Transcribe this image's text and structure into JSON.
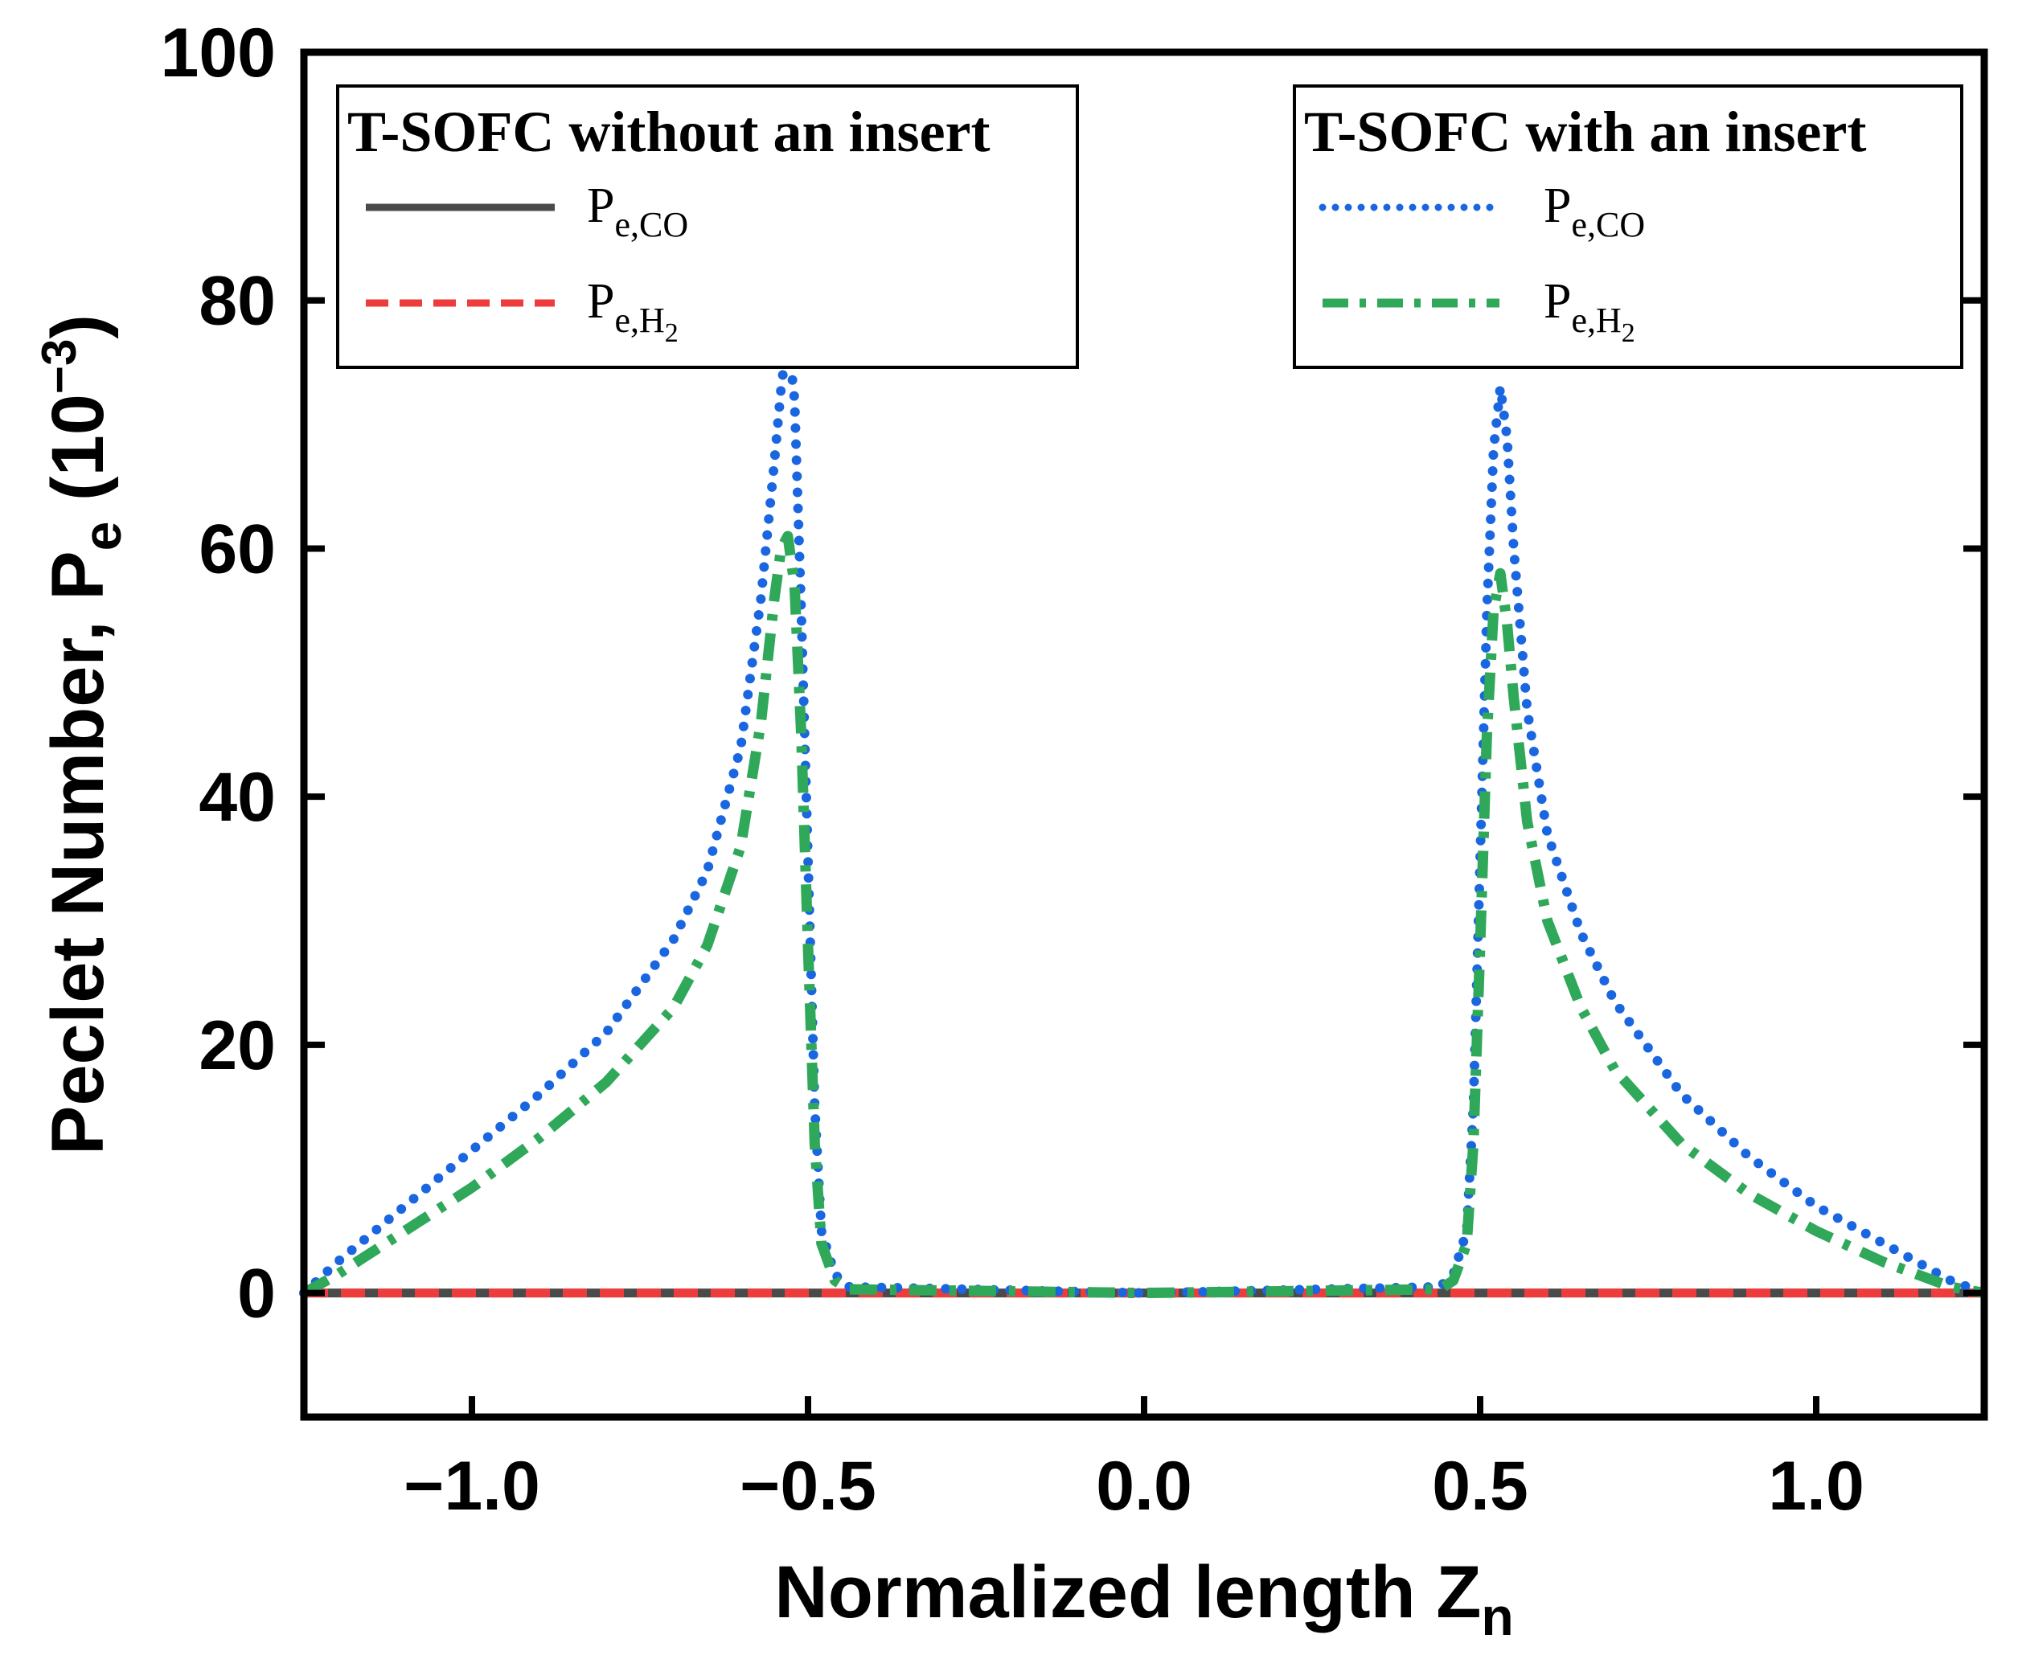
{
  "chart_data": {
    "type": "line",
    "xlabel": "Normalized length Z",
    "xlabel_sub": "n",
    "ylabel": "Peclet Number, P",
    "ylabel_sub": "e",
    "ylabel_unit": "(10",
    "ylabel_unit_exp": "−3",
    "ylabel_unit_close": ")",
    "xlim": [
      -1.25,
      1.25
    ],
    "ylim": [
      -10,
      100
    ],
    "xticks": [
      -1.0,
      -0.5,
      0.0,
      0.5,
      1.0
    ],
    "xtick_labels": [
      "−1.0",
      "−0.5",
      "0.0",
      "0.5",
      "1.0"
    ],
    "yticks": [
      0,
      20,
      40,
      60,
      80,
      100
    ],
    "ytick_labels": [
      "0",
      "20",
      "40",
      "60",
      "80",
      "100"
    ],
    "legends": [
      {
        "title": "T-SOFC without an insert",
        "position": "top-left",
        "entries": [
          {
            "series": 0,
            "label": "P",
            "sub": "e,CO",
            "sub2": ""
          },
          {
            "series": 1,
            "label": "P",
            "sub": "e,H",
            "sub2": "2"
          }
        ]
      },
      {
        "title": "T-SOFC with an insert",
        "position": "top-right",
        "entries": [
          {
            "series": 2,
            "label": "P",
            "sub": "e,CO",
            "sub2": ""
          },
          {
            "series": 3,
            "label": "P",
            "sub": "e,H",
            "sub2": "2"
          }
        ]
      }
    ],
    "series": [
      {
        "name": "T-SOFC without an insert P_e,CO",
        "style": "solid",
        "color": "#4a4a4a",
        "x": [
          -1.25,
          1.25
        ],
        "y": [
          0,
          0
        ]
      },
      {
        "name": "T-SOFC without an insert P_e,H2",
        "style": "dashed",
        "color": "#ee3c3c",
        "x": [
          -1.25,
          1.25
        ],
        "y": [
          0,
          0
        ]
      },
      {
        "name": "T-SOFC with an insert P_e,CO",
        "style": "dotted",
        "color": "#1a66e0",
        "x": [
          -1.25,
          -1.2,
          -1.1,
          -1.0,
          -0.9,
          -0.8,
          -0.7,
          -0.65,
          -0.6,
          -0.57,
          -0.55,
          -0.54,
          -0.53,
          -0.52,
          -0.51,
          -0.5,
          -0.49,
          -0.48,
          -0.46,
          -0.44,
          0.0,
          0.44,
          0.46,
          0.48,
          0.49,
          0.5,
          0.51,
          0.52,
          0.53,
          0.54,
          0.55,
          0.57,
          0.6,
          0.65,
          0.7,
          0.8,
          0.9,
          1.0,
          1.1,
          1.2,
          1.25
        ],
        "y": [
          0,
          2.5,
          7,
          11.5,
          16,
          21,
          28.5,
          34,
          44,
          56,
          67,
          73,
          77,
          72,
          55,
          35,
          15,
          5,
          1.5,
          0.5,
          0,
          0.5,
          1.5,
          5,
          15,
          35,
          55,
          68,
          73,
          69,
          60,
          47,
          37,
          29,
          23.5,
          16,
          11,
          7,
          4,
          1,
          0
        ]
      },
      {
        "name": "T-SOFC with an insert P_e,H2",
        "style": "dashdot",
        "color": "#2fa85a",
        "x": [
          -1.25,
          -1.2,
          -1.1,
          -1.0,
          -0.9,
          -0.8,
          -0.7,
          -0.65,
          -0.6,
          -0.57,
          -0.55,
          -0.54,
          -0.53,
          -0.52,
          -0.51,
          -0.5,
          -0.49,
          -0.48,
          -0.46,
          -0.44,
          0.0,
          0.44,
          0.46,
          0.48,
          0.49,
          0.5,
          0.51,
          0.52,
          0.53,
          0.54,
          0.55,
          0.57,
          0.6,
          0.65,
          0.7,
          0.8,
          0.9,
          1.0,
          1.1,
          1.2,
          1.25
        ],
        "y": [
          0,
          1.5,
          5,
          8.5,
          12.5,
          17,
          23,
          28,
          36,
          46,
          56,
          60,
          61,
          57,
          45,
          28,
          12,
          4,
          1,
          0.3,
          0,
          0.3,
          1,
          4,
          12,
          28,
          45,
          55,
          58,
          54,
          48,
          38,
          30,
          23,
          18,
          12,
          8,
          5,
          2.5,
          0.5,
          0
        ]
      }
    ]
  }
}
